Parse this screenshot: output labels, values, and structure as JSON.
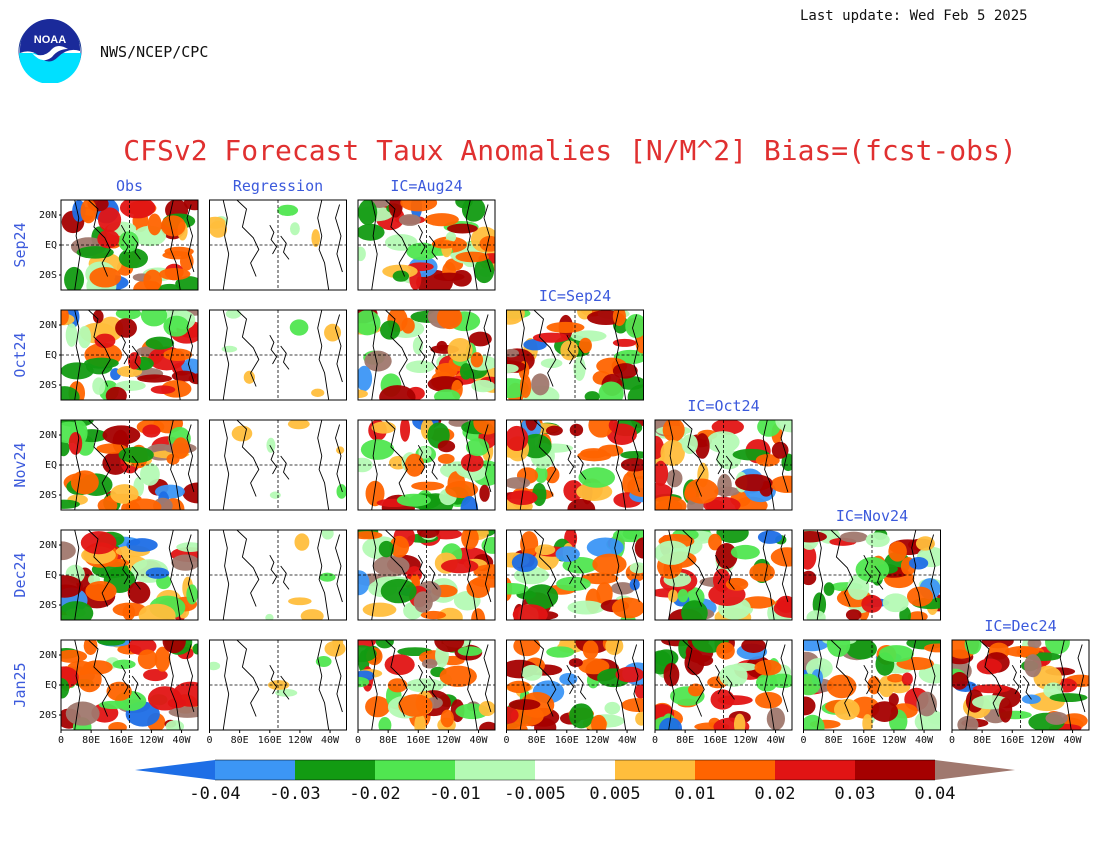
{
  "header": {
    "last_update": "Last update: Wed Feb 5 2025",
    "agency": "NWS/NCEP/CPC",
    "logo_text": "NOAA"
  },
  "chart_data": {
    "type": "heatmap",
    "title": "CFSv2 Forecast Taux Anomalies [N/M^2] Bias=(fcst-obs)",
    "column_headers": [
      "Obs",
      "Regression",
      "IC=Aug24",
      "IC=Sep24",
      "IC=Oct24",
      "IC=Nov24",
      "IC=Dec24"
    ],
    "row_labels": [
      "Sep24",
      "Oct24",
      "Nov24",
      "Dec24",
      "Jan25"
    ],
    "y_tick_labels": [
      "20N",
      "EQ",
      "20S"
    ],
    "x_tick_labels": [
      "0",
      "80E",
      "160E",
      "120W",
      "40W"
    ],
    "panels_per_row": [
      3,
      4,
      5,
      6,
      7
    ],
    "colorbar": {
      "labels": [
        "-0.04",
        "-0.03",
        "-0.02",
        "-0.01",
        "-0.005",
        "0.005",
        "0.01",
        "0.02",
        "0.03",
        "0.04"
      ],
      "colors": [
        "#1e6ee6",
        "#3c96f5",
        "#129b12",
        "#50e650",
        "#b4fab4",
        "#ffffff",
        "#ffbe3c",
        "#ff6400",
        "#e11414",
        "#a50000",
        "#a0786e"
      ]
    },
    "colors": {
      "title": "#e03030",
      "labels": "#3c5adc",
      "coast": "#000000"
    }
  }
}
